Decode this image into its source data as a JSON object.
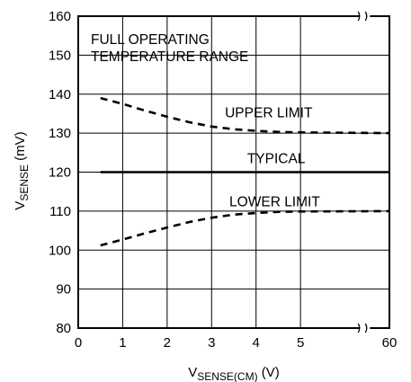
{
  "chart_data": {
    "type": "line",
    "title": "",
    "xlabel": {
      "main": "V",
      "sub": "SENSE(CM)",
      "unit": " (V)"
    },
    "ylabel": {
      "main": "V",
      "sub": "SENSE",
      "unit": " (mV)"
    },
    "x_ticks": [
      "0",
      "1",
      "2",
      "3",
      "4",
      "5",
      "60"
    ],
    "y_ticks": [
      "160",
      "150",
      "140",
      "130",
      "120",
      "110",
      "100",
      "90",
      "80"
    ],
    "xlim": [
      0,
      60
    ],
    "ylim": [
      80,
      160
    ],
    "x_axis_break": "between 5 and 60",
    "grid": true,
    "annotations": [
      "FULL OPERATING",
      "TEMPERATURE RANGE"
    ],
    "series": [
      {
        "name": "UPPER LIMIT",
        "style": "dashed",
        "x": [
          0.5,
          1,
          1.5,
          2,
          2.5,
          3,
          3.5,
          4,
          4.5,
          5,
          60
        ],
        "y": [
          139,
          137.5,
          135.8,
          134.2,
          132.8,
          131.7,
          131,
          130.6,
          130.3,
          130.2,
          130
        ]
      },
      {
        "name": "TYPICAL",
        "style": "solid",
        "x": [
          0.5,
          5,
          60
        ],
        "y": [
          120,
          120,
          120
        ]
      },
      {
        "name": "LOWER LIMIT",
        "style": "dashed",
        "x": [
          0.5,
          1,
          1.5,
          2,
          2.5,
          3,
          3.5,
          4,
          4.5,
          5,
          60
        ],
        "y": [
          101.2,
          102.7,
          104.3,
          105.8,
          107.2,
          108.3,
          109.1,
          109.5,
          109.8,
          109.9,
          110
        ]
      }
    ],
    "line_color": "#000000"
  }
}
